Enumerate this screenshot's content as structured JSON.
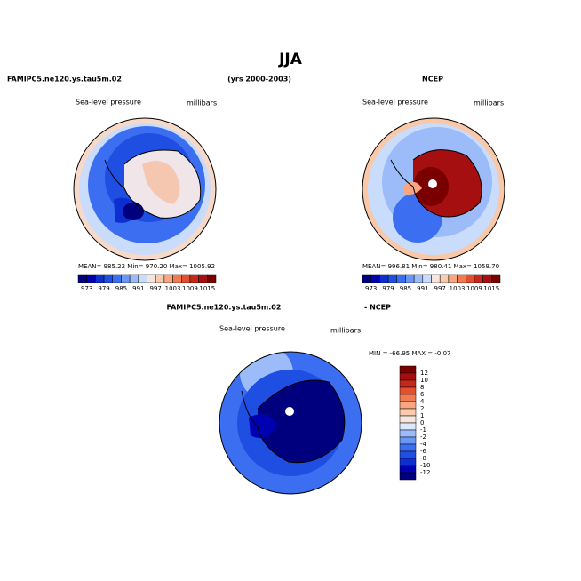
{
  "title": "JJA",
  "header": {
    "left": "FAMIPC5.ne120.ys.tau5m.02",
    "center": "(yrs 2000-2003)",
    "right": "NCEP"
  },
  "panels": [
    {
      "label": "Sea-level pressure",
      "units": "millibars",
      "stats": "MEAN= 985.22   Min= 970.20   Max= 1005.92"
    },
    {
      "label": "Sea-level pressure",
      "units": "millibars",
      "stats": "MEAN= 996.81   Min= 980.41   Max= 1059.70"
    },
    {
      "label": "Sea-level pressure",
      "units": "millibars",
      "stats": "MIN = -66.95  MAX =  -0.07"
    }
  ],
  "diff_header": {
    "left": "FAMIPC5.ne120.ys.tau5m.02",
    "right": "- NCEP"
  },
  "colorbar": {
    "labels": [
      "973",
      "979",
      "985",
      "991",
      "997",
      "1003",
      "1009",
      "1015"
    ],
    "colors": [
      "#00007f",
      "#0000b3",
      "#0d2fd1",
      "#1f4ee3",
      "#3b6ef0",
      "#6a96f5",
      "#9bbcf8",
      "#c9dcfb",
      "#f5e5dc",
      "#fbcbb0",
      "#f8a580",
      "#f27a52",
      "#e4502e",
      "#c8281a",
      "#a50f0f",
      "#7a0000"
    ]
  },
  "diff_colorbar": {
    "labels": [
      "12",
      "10",
      "8",
      "6",
      "4",
      "2",
      "1",
      "0",
      "-1",
      "-2",
      "-4",
      "-6",
      "-8",
      "-10",
      "-12"
    ],
    "colors": [
      "#7a0000",
      "#a50f0f",
      "#c8281a",
      "#e4502e",
      "#f27a52",
      "#f8a580",
      "#fbcbb0",
      "#f5e5dc",
      "#dce8fb",
      "#9bbcf8",
      "#6a96f5",
      "#3b6ef0",
      "#1f4ee3",
      "#0d2fd1",
      "#0000b3",
      "#00007f"
    ]
  }
}
